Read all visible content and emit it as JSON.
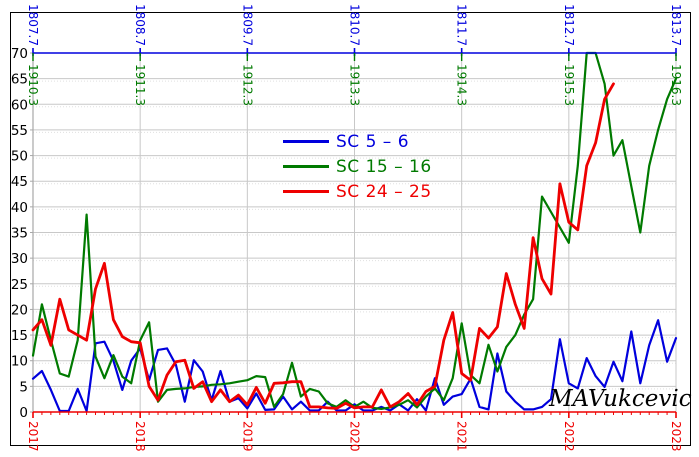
{
  "window": {
    "background": "#ffffff",
    "frame_color": "#000000"
  },
  "chart_data": {
    "type": "line",
    "title": "",
    "xlabel": "",
    "ylabel": "",
    "ylim": [
      0,
      70
    ],
    "y_tick_step": 5,
    "grid": true,
    "legend_position": "upper-middle-left",
    "grid_color": "#c8c8c8",
    "grid_dot_color": "#e0e0e0",
    "yaxis_color": "#a8a8a8",
    "ylabel_color": "#000000",
    "watermark": "MAVukcevic",
    "axes": {
      "bottom": {
        "color": "#ee0000",
        "tick_years": [
          2017,
          2018,
          2019,
          2020,
          2021,
          2022,
          2023
        ],
        "minor_ticks_per_year": 12
      },
      "top_primary": {
        "color": "#0000dd",
        "labels": [
          "1807.7",
          "1808.7",
          "1809.7",
          "1810.7",
          "1811.7",
          "1812.7",
          "1813.7"
        ]
      },
      "top_secondary": {
        "color": "#007a00",
        "labels": [
          "1910.3",
          "1911.3",
          "1912.3",
          "1913.3",
          "1914.3",
          "1915.3",
          "1916.3"
        ]
      }
    },
    "x_start_year": 2017,
    "x_end_year": 2023,
    "sampling": "monthly",
    "series": [
      {
        "name": "SC 5 – 6",
        "color": "#0000dd",
        "width": 2.2,
        "start": 2017.0,
        "values": [
          6.5,
          8,
          4.3,
          0.2,
          0.2,
          4.5,
          0.2,
          13.4,
          13.7,
          10,
          4.3,
          10,
          12.4,
          6.2,
          12.1,
          12.4,
          9.2,
          2,
          10.1,
          7.9,
          2.3,
          8,
          2,
          2.7,
          0.7,
          3.6,
          0.4,
          0.5,
          3,
          0.5,
          2,
          0.3,
          0.3,
          2,
          0.3,
          0.3,
          1.5,
          0.3,
          0.3,
          1,
          0.3,
          1.5,
          0.3,
          2.5,
          0.3,
          6.6,
          1.4,
          3,
          3.5,
          6.5,
          1,
          0.5,
          11.4,
          4,
          2,
          0.5,
          0.5,
          1,
          2.5,
          14.2,
          5.6,
          4.6,
          10.5,
          7,
          4.9,
          9.8,
          6,
          15.7,
          5.6,
          13,
          17.9,
          9.8,
          14.4
        ]
      },
      {
        "name": "SC 15 – 16",
        "color": "#007a00",
        "width": 2.2,
        "start": 2017.0,
        "values": [
          11,
          21,
          14,
          7.5,
          6.9,
          14,
          38.5,
          10.8,
          6.6,
          11.1,
          6.9,
          5.6,
          14,
          17.5,
          2,
          4.3,
          4.5,
          4.6,
          4.9,
          5,
          5.3,
          5.4,
          5.6,
          5.9,
          6.2,
          7,
          6.8,
          1,
          3.5,
          9.6,
          3,
          4.5,
          4,
          1.7,
          1,
          2.3,
          1,
          2,
          0.8,
          0.6,
          0.9,
          1.4,
          2.3,
          0.9,
          3,
          4.6,
          2.3,
          6.6,
          17.3,
          7.2,
          5.6,
          13.1,
          7.9,
          12.7,
          15,
          19,
          22,
          42,
          39,
          36,
          33,
          48,
          70,
          70,
          64,
          50,
          53,
          44,
          35,
          48,
          55,
          61,
          65
        ]
      },
      {
        "name": "SC 24 – 25",
        "color": "#ee0000",
        "width": 2.8,
        "start": 2017.0,
        "values": [
          16,
          18,
          13,
          22,
          16,
          15,
          14,
          24,
          29,
          18,
          14.7,
          13.7,
          13.5,
          5,
          2.3,
          7.2,
          9.8,
          10.1,
          4.6,
          5.9,
          2,
          4.3,
          2,
          3.3,
          1.4,
          4.8,
          1.7,
          5.6,
          5.7,
          5.9,
          5.9,
          1,
          1,
          0.8,
          0.7,
          1.7,
          0.8,
          1,
          1,
          4.3,
          1,
          2,
          3.6,
          1.4,
          4,
          5,
          14,
          19.4,
          7.5,
          6.2,
          16.3,
          14.4,
          16.6,
          27,
          21,
          16.3,
          34,
          26,
          23,
          44.5,
          37,
          35.5,
          48,
          52.5,
          61,
          64
        ]
      }
    ]
  }
}
